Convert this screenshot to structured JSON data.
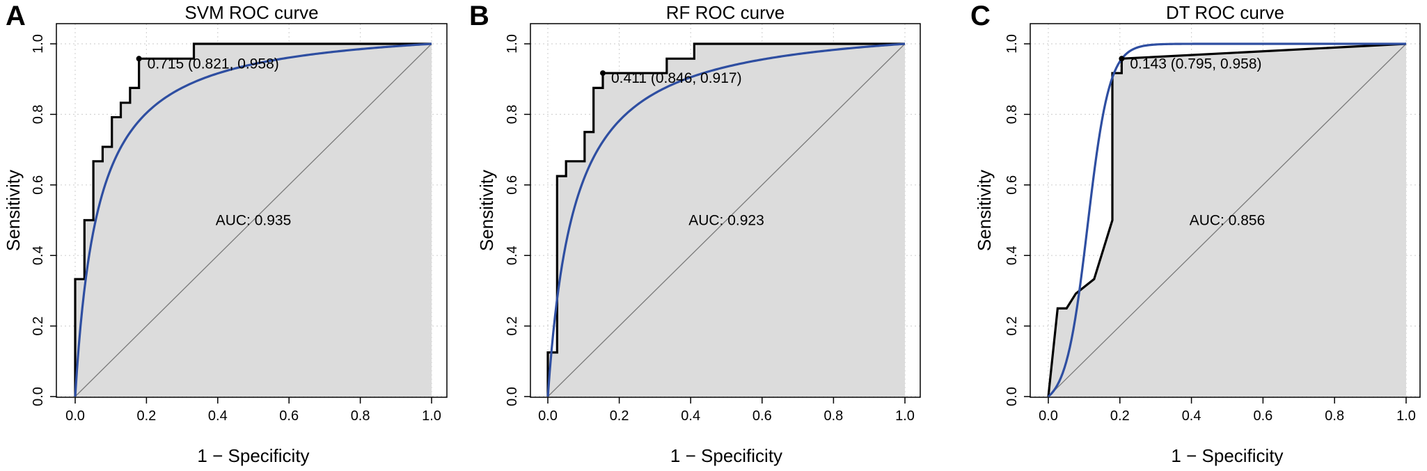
{
  "chart_data": [
    {
      "type": "line",
      "panel": "A",
      "title": "SVM ROC curve",
      "xlabel": "1 − Specificity",
      "ylabel": "Sensitivity",
      "xlim": [
        0,
        1
      ],
      "ylim": [
        0,
        1
      ],
      "x_ticks": [
        "0.0",
        "0.2",
        "0.4",
        "0.6",
        "0.8",
        "1.0"
      ],
      "y_ticks": [
        "0.0",
        "0.2",
        "0.4",
        "0.6",
        "0.8",
        "1.0"
      ],
      "grid": true,
      "auc_label": "AUC: 0.935",
      "threshold_label": "0.715 (0.821, 0.958)",
      "threshold_point": [
        0.179,
        0.958
      ],
      "series": [
        {
          "style": "empirical",
          "color": "#000000",
          "x": [
            0,
            0,
            0.026,
            0.026,
            0.051,
            0.051,
            0.077,
            0.077,
            0.103,
            0.103,
            0.128,
            0.128,
            0.154,
            0.154,
            0.179,
            0.179,
            0.333,
            0.333,
            1.0
          ],
          "y": [
            0,
            0.333,
            0.333,
            0.5,
            0.5,
            0.667,
            0.667,
            0.708,
            0.708,
            0.792,
            0.792,
            0.833,
            0.833,
            0.875,
            0.875,
            0.958,
            0.958,
            1.0,
            1.0
          ]
        },
        {
          "style": "smoothed",
          "color": "#2e4ea1",
          "shape_parameter": 0.065
        }
      ]
    },
    {
      "type": "line",
      "panel": "B",
      "title": "RF ROC curve",
      "xlabel": "1 − Specificity",
      "ylabel": "Sensitivity",
      "xlim": [
        0,
        1
      ],
      "ylim": [
        0,
        1
      ],
      "x_ticks": [
        "0.0",
        "0.2",
        "0.4",
        "0.6",
        "0.8",
        "1.0"
      ],
      "y_ticks": [
        "0.0",
        "0.2",
        "0.4",
        "0.6",
        "0.8",
        "1.0"
      ],
      "grid": true,
      "auc_label": "AUC: 0.923",
      "threshold_label": "0.411 (0.846, 0.917)",
      "threshold_point": [
        0.154,
        0.917
      ],
      "series": [
        {
          "style": "empirical",
          "color": "#000000",
          "x": [
            0,
            0,
            0.026,
            0.026,
            0.051,
            0.051,
            0.077,
            0.077,
            0.103,
            0.103,
            0.128,
            0.128,
            0.154,
            0.154,
            0.333,
            0.333,
            0.41,
            0.41,
            1.0
          ],
          "y": [
            0,
            0.125,
            0.125,
            0.625,
            0.625,
            0.667,
            0.667,
            0.667,
            0.667,
            0.75,
            0.75,
            0.875,
            0.875,
            0.917,
            0.917,
            0.958,
            0.958,
            1.0,
            1.0
          ]
        },
        {
          "style": "smoothed",
          "color": "#2e4ea1",
          "shape_parameter": 0.075
        }
      ]
    },
    {
      "type": "line",
      "panel": "C",
      "title": "DT ROC curve",
      "xlabel": "1 − Specificity",
      "ylabel": "Sensitivity",
      "xlim": [
        0,
        1
      ],
      "ylim": [
        0,
        1
      ],
      "x_ticks": [
        "0.0",
        "0.2",
        "0.4",
        "0.6",
        "0.8",
        "1.0"
      ],
      "y_ticks": [
        "0.0",
        "0.2",
        "0.4",
        "0.6",
        "0.8",
        "1.0"
      ],
      "grid": true,
      "auc_label": "AUC: 0.856",
      "threshold_label": "0.143 (0.795, 0.958)",
      "threshold_point": [
        0.205,
        0.958
      ],
      "series": [
        {
          "style": "empirical",
          "color": "#000000",
          "x": [
            0,
            0.026,
            0.051,
            0.077,
            0.128,
            0.179,
            0.179,
            0.205,
            0.205,
            1.0
          ],
          "y": [
            0,
            0.25,
            0.25,
            0.292,
            0.333,
            0.5,
            0.917,
            0.917,
            0.958,
            1.0
          ]
        },
        {
          "style": "smoothed",
          "color": "#2e4ea1",
          "logistic_center": 0.11,
          "logistic_slope": 33
        }
      ]
    }
  ]
}
